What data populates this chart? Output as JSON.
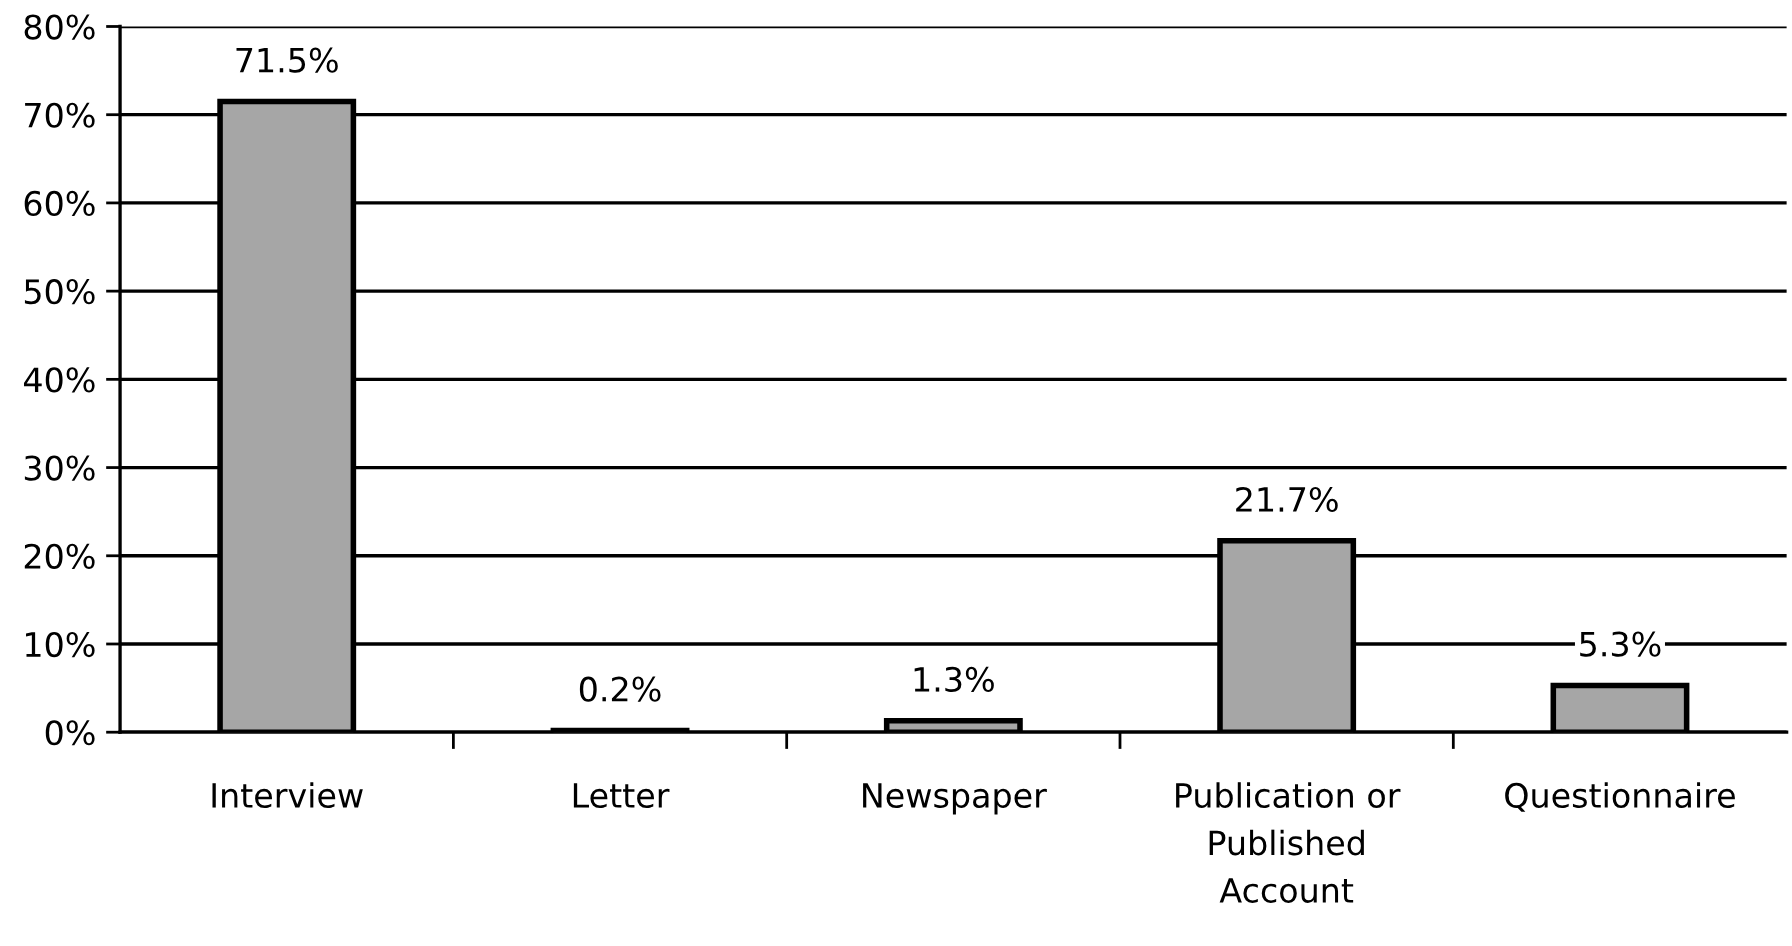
{
  "chart_data": {
    "type": "bar",
    "categories": [
      "Interview",
      "Letter",
      "Newspaper",
      "Publication or\nPublished\nAccount",
      "Questionnaire"
    ],
    "values": [
      71.5,
      0.2,
      1.3,
      21.7,
      5.3
    ],
    "value_labels": [
      "71.5%",
      "0.2%",
      "1.3%",
      "21.7%",
      "5.3%"
    ],
    "color": "#a6a6a6",
    "ylim": [
      0,
      80
    ],
    "yticks": [
      {
        "value": 0,
        "label": "0%"
      },
      {
        "value": 10,
        "label": "10%"
      },
      {
        "value": 20,
        "label": "20%"
      },
      {
        "value": 30,
        "label": "30%"
      },
      {
        "value": 40,
        "label": "40%"
      },
      {
        "value": 50,
        "label": "50%"
      },
      {
        "value": 60,
        "label": "60%"
      },
      {
        "value": 70,
        "label": "70%"
      },
      {
        "value": 80,
        "label": "80%"
      }
    ],
    "grid": "y",
    "legend": false
  }
}
